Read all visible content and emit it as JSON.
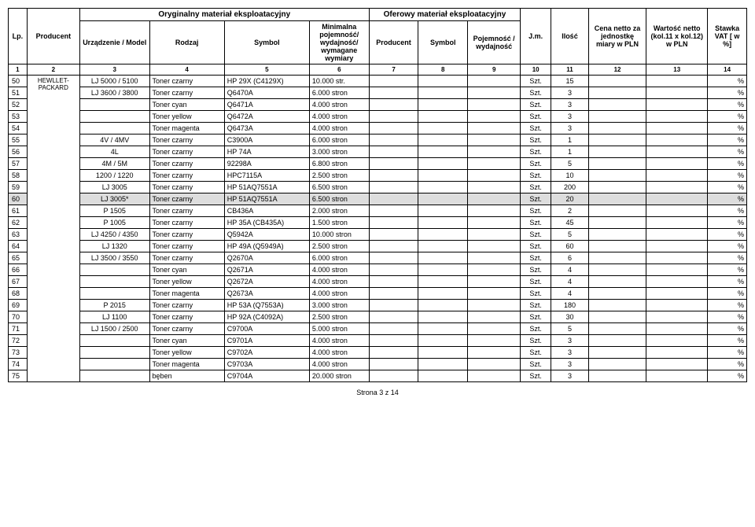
{
  "header": {
    "group_original": "Oryginalny materiał eksploatacyjny",
    "group_offered": "Oferowy materiał eksploatacyjny",
    "lp": "Lp.",
    "producent": "Producent",
    "urzadzenie": "Urządzenie / Model",
    "rodzaj": "Rodzaj",
    "symbol": "Symbol",
    "minimalna": "Minimalna pojemność/ wydajność/ wymagane wymiary",
    "producent2": "Producent",
    "symbol2": "Symbol",
    "pojemnosc": "Pojemność / wydajność",
    "jm": "J.m.",
    "ilosc": "Ilość",
    "cena": "Cena netto za jednostkę miary w PLN",
    "wartosc": "Wartość netto (kol.11 x kol.12) w PLN",
    "stawka": "Stawka VAT [ w %]"
  },
  "colnums": [
    "1",
    "2",
    "3",
    "4",
    "5",
    "6",
    "7",
    "8",
    "9",
    "10",
    "11",
    "12",
    "13",
    "14"
  ],
  "producent_main": "HEWLLET-PACKARD",
  "rows": [
    {
      "lp": "50",
      "model": "LJ 5000 / 5100",
      "rodzaj": "Toner czarny",
      "symbol": "HP 29X (C4129X)",
      "min": "10.000 str.",
      "jm": "Szt.",
      "ilosc": "15",
      "vat": "%"
    },
    {
      "lp": "51",
      "model": "LJ 3600 / 3800",
      "rodzaj": "Toner czarny",
      "symbol": "Q6470A",
      "min": "6.000 stron",
      "jm": "Szt.",
      "ilosc": "3",
      "vat": "%"
    },
    {
      "lp": "52",
      "model": "",
      "rodzaj": "Toner cyan",
      "symbol": "Q6471A",
      "min": "4.000 stron",
      "jm": "Szt.",
      "ilosc": "3",
      "vat": "%"
    },
    {
      "lp": "53",
      "model": "",
      "rodzaj": "Toner yellow",
      "symbol": "Q6472A",
      "min": "4.000 stron",
      "jm": "Szt.",
      "ilosc": "3",
      "vat": "%"
    },
    {
      "lp": "54",
      "model": "",
      "rodzaj": "Toner magenta",
      "symbol": "Q6473A",
      "min": "4.000 stron",
      "jm": "Szt.",
      "ilosc": "3",
      "vat": "%"
    },
    {
      "lp": "55",
      "model": "4V / 4MV",
      "rodzaj": "Toner czarny",
      "symbol": "C3900A",
      "min": "6.000 stron",
      "jm": "Szt.",
      "ilosc": "1",
      "vat": "%"
    },
    {
      "lp": "56",
      "model": "4L",
      "rodzaj": "Toner czarny",
      "symbol": "HP 74A",
      "min": "3.000 stron",
      "jm": "Szt.",
      "ilosc": "1",
      "vat": "%"
    },
    {
      "lp": "57",
      "model": "4M / 5M",
      "rodzaj": "Toner czarny",
      "symbol": "92298A",
      "min": "6.800 stron",
      "jm": "Szt.",
      "ilosc": "5",
      "vat": "%"
    },
    {
      "lp": "58",
      "model": "1200 / 1220",
      "rodzaj": "Toner czarny",
      "symbol": "HPC7115A",
      "min": "2.500 stron",
      "jm": "Szt.",
      "ilosc": "10",
      "vat": "%"
    },
    {
      "lp": "59",
      "model": "LJ 3005",
      "rodzaj": "Toner czarny",
      "symbol": "HP 51AQ7551A",
      "min": "6.500 stron",
      "jm": "Szt.",
      "ilosc": "200",
      "vat": "%"
    },
    {
      "lp": "60",
      "model": "LJ 3005*",
      "rodzaj": "Toner czarny",
      "symbol": "HP 51AQ7551A",
      "min": "6.500 stron",
      "jm": "Szt.",
      "ilosc": "20",
      "vat": "%",
      "hl": true
    },
    {
      "lp": "61",
      "model": "P 1505",
      "rodzaj": "Toner czarny",
      "symbol": "CB436A",
      "min": "2.000 stron",
      "jm": "Szt.",
      "ilosc": "2",
      "vat": "%"
    },
    {
      "lp": "62",
      "model": "P 1005",
      "rodzaj": "Toner czarny",
      "symbol": "HP 35A (CB435A)",
      "min": "1.500 stron",
      "jm": "Szt.",
      "ilosc": "45",
      "vat": "%"
    },
    {
      "lp": "63",
      "model": "LJ 4250 / 4350",
      "rodzaj": "Toner czarny",
      "symbol": "Q5942A",
      "min": "10.000 stron",
      "jm": "Szt.",
      "ilosc": "5",
      "vat": "%"
    },
    {
      "lp": "64",
      "model": "LJ 1320",
      "rodzaj": "Toner czarny",
      "symbol": "HP 49A (Q5949A)",
      "min": "2.500 stron",
      "jm": "Szt.",
      "ilosc": "60",
      "vat": "%"
    },
    {
      "lp": "65",
      "model": "LJ 3500 / 3550",
      "rodzaj": "Toner czarny",
      "symbol": "Q2670A",
      "min": "6.000 stron",
      "jm": "Szt.",
      "ilosc": "6",
      "vat": "%"
    },
    {
      "lp": "66",
      "model": "",
      "rodzaj": "Toner cyan",
      "symbol": "Q2671A",
      "min": "4.000 stron",
      "jm": "Szt.",
      "ilosc": "4",
      "vat": "%"
    },
    {
      "lp": "67",
      "model": "",
      "rodzaj": "Toner yellow",
      "symbol": "Q2672A",
      "min": "4.000 stron",
      "jm": "Szt.",
      "ilosc": "4",
      "vat": "%"
    },
    {
      "lp": "68",
      "model": "",
      "rodzaj": "Toner magenta",
      "symbol": "Q2673A",
      "min": "4.000 stron",
      "jm": "Szt.",
      "ilosc": "4",
      "vat": "%"
    },
    {
      "lp": "69",
      "model": "P 2015",
      "rodzaj": "Toner czarny",
      "symbol": "HP 53A (Q7553A)",
      "min": "3.000 stron",
      "jm": "Szt.",
      "ilosc": "180",
      "vat": "%"
    },
    {
      "lp": "70",
      "model": "LJ 1100",
      "rodzaj": "Toner czarny",
      "symbol": "HP 92A (C4092A)",
      "min": "2.500 stron",
      "jm": "Szt.",
      "ilosc": "30",
      "vat": "%"
    },
    {
      "lp": "71",
      "model": "LJ 1500 / 2500",
      "rodzaj": "Toner czarny",
      "symbol": "C9700A",
      "min": "5.000 stron",
      "jm": "Szt.",
      "ilosc": "5",
      "vat": "%"
    },
    {
      "lp": "72",
      "model": "",
      "rodzaj": "Toner cyan",
      "symbol": "C9701A",
      "min": "4.000 stron",
      "jm": "Szt.",
      "ilosc": "3",
      "vat": "%"
    },
    {
      "lp": "73",
      "model": "",
      "rodzaj": "Toner yellow",
      "symbol": "C9702A",
      "min": "4.000 stron",
      "jm": "Szt.",
      "ilosc": "3",
      "vat": "%"
    },
    {
      "lp": "74",
      "model": "",
      "rodzaj": "Toner magenta",
      "symbol": "C9703A",
      "min": "4.000 stron",
      "jm": "Szt.",
      "ilosc": "3",
      "vat": "%"
    },
    {
      "lp": "75",
      "model": "",
      "rodzaj": "bęben",
      "symbol": "C9704A",
      "min": "20.000 stron",
      "jm": "Szt.",
      "ilosc": "3",
      "vat": "%"
    }
  ],
  "footer": "Strona 3 z 14",
  "colwidths": {
    "c1": 22,
    "c2": 62,
    "c3": 82,
    "c4": 88,
    "c5": 100,
    "c6": 70,
    "c7": 58,
    "c8": 58,
    "c9": 62,
    "c10": 36,
    "c11": 44,
    "c12": 68,
    "c13": 72,
    "c14": 46
  }
}
